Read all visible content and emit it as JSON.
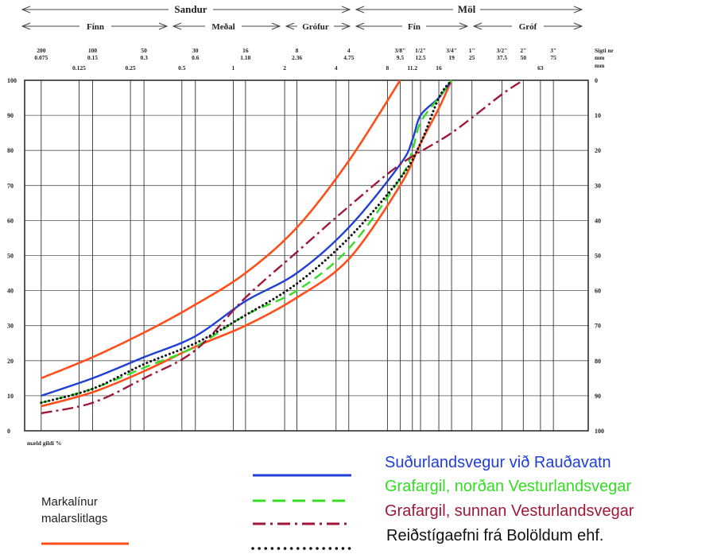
{
  "header": {
    "sandur": "Sandur",
    "mol": "Möl",
    "finn": "Fínn",
    "medal": "Meðal",
    "grofur": "Grófur",
    "fin": "Fín",
    "grof": "Gróf"
  },
  "sieves_top": [
    {
      "top": "200",
      "bottom": "0.075",
      "d": 0.075
    },
    {
      "top": "100",
      "bottom": "0.15",
      "d": 0.15
    },
    {
      "top": "50",
      "bottom": "0.3",
      "d": 0.3
    },
    {
      "top": "30",
      "bottom": "0.6",
      "d": 0.6
    },
    {
      "top": "16",
      "bottom": "1.18",
      "d": 1.18
    },
    {
      "top": "8",
      "bottom": "2.36",
      "d": 2.36
    },
    {
      "top": "4",
      "bottom": "4.75",
      "d": 4.75
    },
    {
      "top": "3/8\"",
      "bottom": "9.5",
      "d": 9.5
    },
    {
      "top": "1/2\"",
      "bottom": "12.5",
      "d": 12.5
    },
    {
      "top": "3/4\"",
      "bottom": "19",
      "d": 19
    },
    {
      "top": "1\"",
      "bottom": "25",
      "d": 25
    },
    {
      "top": "3/2\"",
      "bottom": "37.5",
      "d": 37.5
    },
    {
      "top": "2\"",
      "bottom": "50",
      "d": 50
    },
    {
      "top": "3\"",
      "bottom": "75",
      "d": 75
    }
  ],
  "sieves_mid": [
    {
      "label": "0.125",
      "d": 0.125
    },
    {
      "label": "0.25",
      "d": 0.25
    },
    {
      "label": "0.5",
      "d": 0.5
    },
    {
      "label": "1",
      "d": 1
    },
    {
      "label": "2",
      "d": 2
    },
    {
      "label": "4",
      "d": 4
    },
    {
      "label": "8",
      "d": 8
    },
    {
      "label": "11.2",
      "d": 11.2
    },
    {
      "label": "16",
      "d": 16
    },
    {
      "label": "63",
      "d": 63
    }
  ],
  "sieve_unit": {
    "line1": "Sigti nr",
    "line2": "mm",
    "line3": "mm"
  },
  "footer_label": "mæld gildi %",
  "chart_data": {
    "type": "line",
    "x_scale": "log",
    "xlim": [
      0.06,
      120
    ],
    "ylim": [
      0,
      100
    ],
    "y_ticks": [
      0,
      10,
      20,
      30,
      40,
      50,
      60,
      70,
      80,
      90,
      100
    ],
    "y2_ticks": [
      100,
      90,
      80,
      70,
      60,
      50,
      40,
      30,
      20,
      10,
      0
    ],
    "grid": true,
    "envelope_legend_label": "Markalínur malarslitlags",
    "envelope_color": "#ff4e1a",
    "envelope": [
      {
        "points": [
          [
            0.075,
            15
          ],
          [
            0.15,
            21
          ],
          [
            0.3,
            28
          ],
          [
            0.6,
            36
          ],
          [
            1.18,
            45
          ],
          [
            2.36,
            58
          ],
          [
            4.75,
            77
          ],
          [
            9.5,
            100
          ]
        ]
      },
      {
        "points": [
          [
            0.075,
            7
          ],
          [
            0.15,
            11
          ],
          [
            0.3,
            17
          ],
          [
            0.6,
            24
          ],
          [
            1.18,
            30
          ],
          [
            2.36,
            38
          ],
          [
            4.75,
            49
          ],
          [
            9.5,
            70
          ],
          [
            12.5,
            82
          ],
          [
            16,
            92
          ],
          [
            19,
            100
          ]
        ]
      }
    ],
    "series": [
      {
        "name": "Suðurlandsvegur við Rauðavatn",
        "color": "#1f3fd6",
        "style": "solid",
        "points": [
          [
            0.075,
            10
          ],
          [
            0.15,
            15
          ],
          [
            0.3,
            21
          ],
          [
            0.6,
            27
          ],
          [
            1.18,
            37
          ],
          [
            2.36,
            45
          ],
          [
            4.75,
            58
          ],
          [
            9.5,
            76
          ],
          [
            11.2,
            83
          ],
          [
            12.5,
            90
          ],
          [
            16,
            95
          ],
          [
            19,
            100
          ]
        ]
      },
      {
        "name": "Grafargil, norðan Vesturlandsvegar",
        "color": "#33dd22",
        "style": "dashed",
        "points": [
          [
            0.075,
            8
          ],
          [
            0.15,
            12
          ],
          [
            0.3,
            18
          ],
          [
            0.6,
            24
          ],
          [
            1.18,
            33
          ],
          [
            2.36,
            40
          ],
          [
            4.75,
            52
          ],
          [
            9.5,
            72
          ],
          [
            11.2,
            80
          ],
          [
            12.5,
            88
          ],
          [
            16,
            95
          ],
          [
            19,
            100
          ]
        ]
      },
      {
        "name": "Grafargil, sunnan Vesturlandsvegar",
        "color": "#a01838",
        "style": "dashdot",
        "points": [
          [
            0.075,
            5
          ],
          [
            0.15,
            8
          ],
          [
            0.3,
            15
          ],
          [
            0.6,
            23
          ],
          [
            1.18,
            38
          ],
          [
            2.36,
            51
          ],
          [
            4.75,
            64
          ],
          [
            9.5,
            76
          ],
          [
            19,
            85
          ],
          [
            37.5,
            96
          ],
          [
            50,
            100
          ]
        ]
      },
      {
        "name": "Reiðstígaefni frá Bolöldum ehf.",
        "color": "#111111",
        "style": "dotted",
        "points": [
          [
            0.075,
            8
          ],
          [
            0.15,
            12
          ],
          [
            0.3,
            19
          ],
          [
            0.6,
            25
          ],
          [
            1.18,
            33
          ],
          [
            2.36,
            42
          ],
          [
            4.75,
            55
          ],
          [
            9.5,
            72
          ],
          [
            12.5,
            82
          ],
          [
            16,
            95
          ],
          [
            19,
            100
          ]
        ]
      }
    ]
  }
}
